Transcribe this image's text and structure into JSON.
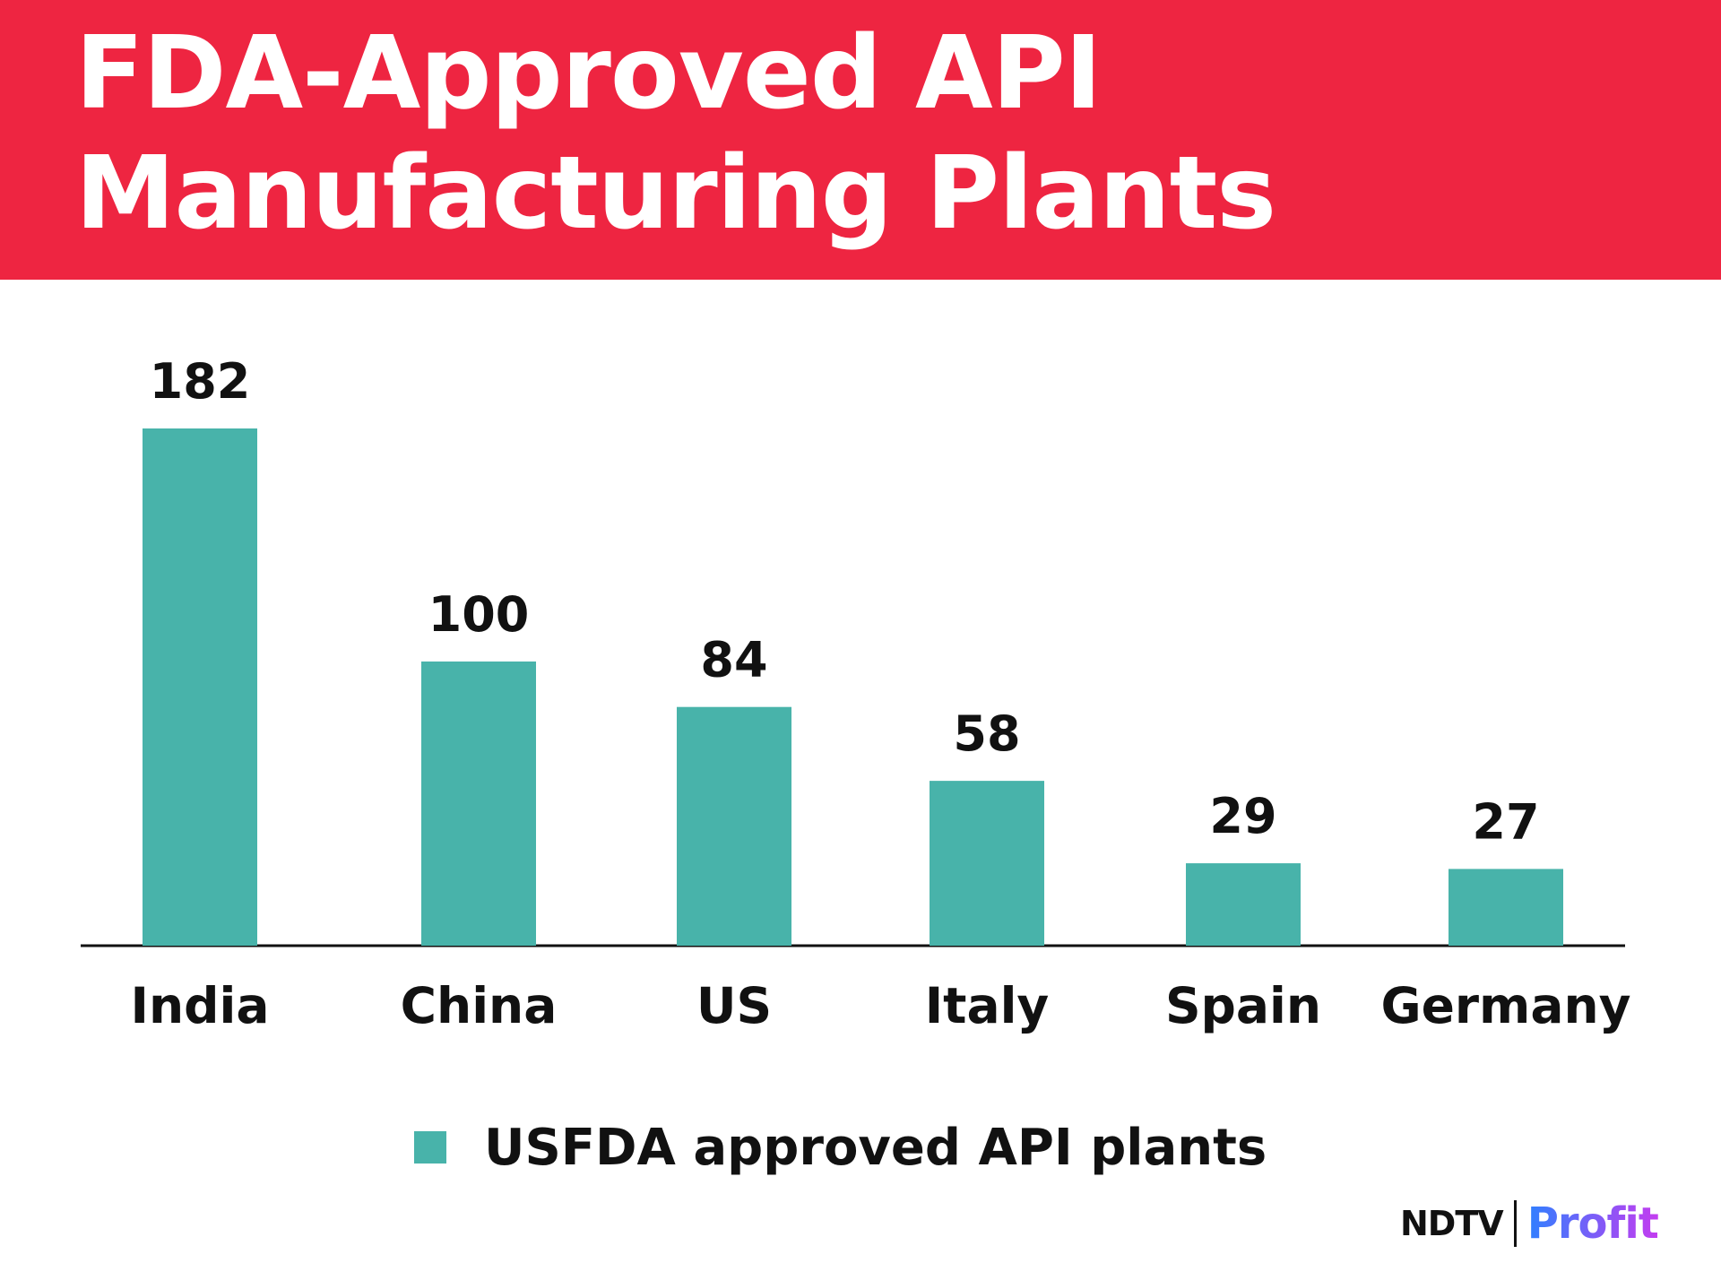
{
  "header": {
    "title_line1": "FDA-Approved API",
    "title_line2": "Manufacturing Plants",
    "background_color": "#ee2541"
  },
  "chart_data": {
    "type": "bar",
    "title": "FDA-Approved API Manufacturing Plants",
    "categories": [
      "India",
      "China",
      "US",
      "Italy",
      "Spain",
      "Germany"
    ],
    "series": [
      {
        "name": "USFDA approved API plants",
        "values": [
          182,
          100,
          84,
          58,
          29,
          27
        ],
        "color": "#48b3aa"
      }
    ],
    "xlabel": "",
    "ylabel": "",
    "ylim": [
      0,
      182
    ],
    "grid": false,
    "legend_position": "bottom-center",
    "data_labels": true
  },
  "logo": {
    "ndtv": "NDTV",
    "profit": "Profit",
    "profit_gradient": [
      "#2f80ff",
      "#c43cf0"
    ]
  }
}
